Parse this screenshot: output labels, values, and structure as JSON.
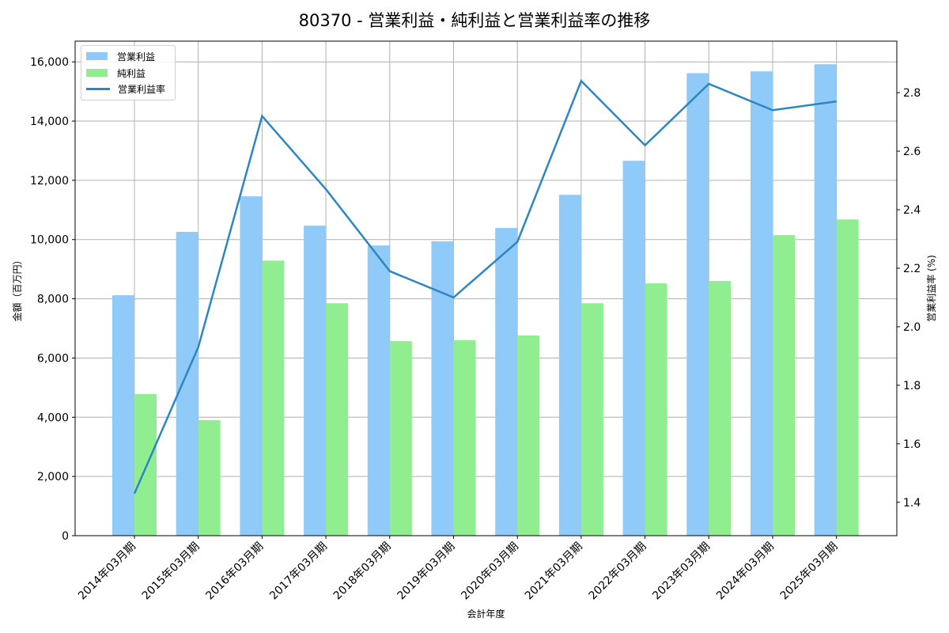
{
  "title": "80370 - 営業利益・純利益と営業利益率の推移",
  "legend": {
    "items": [
      {
        "label": "営業利益",
        "type": "bar",
        "color": "#90CAF9"
      },
      {
        "label": "純利益",
        "type": "bar",
        "color": "#90EE90"
      },
      {
        "label": "営業利益率",
        "type": "line",
        "color": "#2E86C1"
      }
    ]
  },
  "axes": {
    "x_title": "会計年度",
    "y_left_title": "金額（百万円）",
    "y_right_title": "営業利益率 (%)",
    "y_left_ticks": [
      "0",
      "2,000",
      "4,000",
      "6,000",
      "8,000",
      "10,000",
      "12,000",
      "14,000",
      "16,000"
    ],
    "y_right_ticks": [
      "1.4",
      "1.6",
      "1.8",
      "2.0",
      "2.2",
      "2.4",
      "2.6",
      "2.8"
    ]
  },
  "chart_data": {
    "type": "bar",
    "title": "80370 - 営業利益・純利益と営業利益率の推移",
    "xlabel": "会計年度",
    "ylabel": "金額（百万円）",
    "ylabel_right": "営業利益率 (%)",
    "categories": [
      "2014年03月期",
      "2015年03月期",
      "2016年03月期",
      "2017年03月期",
      "2018年03月期",
      "2019年03月期",
      "2020年03月期",
      "2021年03月期",
      "2022年03月期",
      "2023年03月期",
      "2024年03月期",
      "2025年03月期"
    ],
    "series": [
      {
        "name": "営業利益",
        "type": "bar",
        "axis": "left",
        "color": "#90CAF9",
        "values": [
          8120,
          10260,
          11460,
          10470,
          9800,
          9940,
          10390,
          11510,
          12660,
          15620,
          15680,
          15920
        ]
      },
      {
        "name": "純利益",
        "type": "bar",
        "axis": "left",
        "color": "#90EE90",
        "values": [
          4780,
          3900,
          9290,
          7850,
          6570,
          6600,
          6760,
          7850,
          8520,
          8600,
          10150,
          10680
        ]
      },
      {
        "name": "営業利益率",
        "type": "line",
        "axis": "right",
        "color": "#2E86C1",
        "values": [
          1.43,
          1.93,
          2.72,
          2.47,
          2.19,
          2.1,
          2.29,
          2.84,
          2.62,
          2.83,
          2.74,
          2.77
        ]
      }
    ],
    "ylim": [
      0,
      16700
    ],
    "ylim_right": [
      1.286,
      2.976
    ],
    "grid": true,
    "legend_position": "upper left"
  }
}
